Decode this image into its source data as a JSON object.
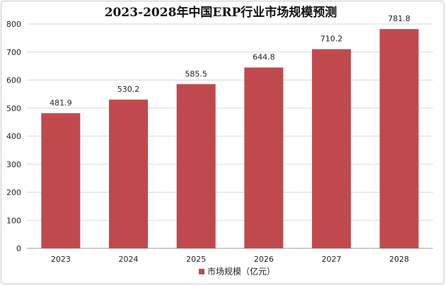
{
  "chart_data": {
    "type": "bar",
    "title": "2023-2028年中国ERP行业市场规模预测",
    "categories": [
      "2023",
      "2024",
      "2025",
      "2026",
      "2027",
      "2028"
    ],
    "series": [
      {
        "name": "市场规模（亿元）",
        "values": [
          481.9,
          530.2,
          585.5,
          644.8,
          710.2,
          781.8
        ]
      }
    ],
    "data_labels": [
      "481.9",
      "530.2",
      "585.5",
      "644.8",
      "710.2",
      "781.8"
    ],
    "y_ticks": [
      "0",
      "100",
      "200",
      "300",
      "400",
      "500",
      "600",
      "700",
      "800"
    ],
    "ylim": [
      0,
      800
    ],
    "grid": true,
    "legend_position": "bottom",
    "bar_color": "#c0494d"
  }
}
